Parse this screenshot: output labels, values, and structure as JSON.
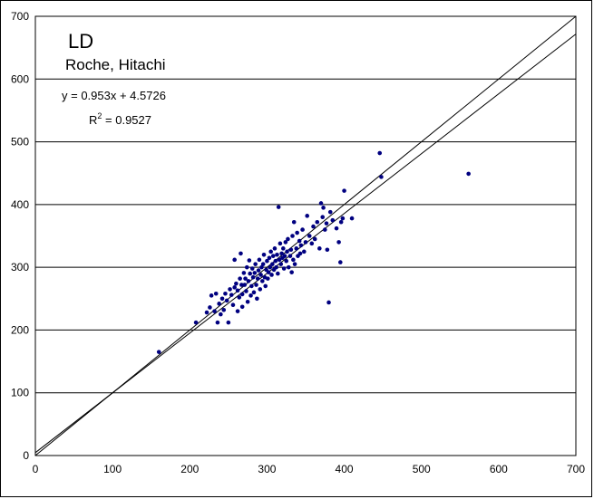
{
  "chart_data": {
    "type": "scatter",
    "title": "LD",
    "subtitle": "Roche, Hitachi",
    "equation": "y = 0.953x + 4.5726",
    "r2_prefix": "R",
    "r2_exponent": "2",
    "r2_value": " = 0.9527",
    "xlabel": "",
    "ylabel": "",
    "xlim": [
      0,
      700
    ],
    "ylim": [
      0,
      700
    ],
    "x_ticks": [
      0,
      100,
      200,
      300,
      400,
      500,
      600,
      700
    ],
    "y_ticks": [
      0,
      100,
      200,
      300,
      400,
      500,
      600,
      700
    ],
    "grid": "horizontal",
    "legend": "none",
    "point_color": "#000080",
    "line_color": "#000000",
    "lines": [
      {
        "kind": "identity",
        "slope": 1,
        "intercept": 0
      },
      {
        "kind": "regression",
        "slope": 0.953,
        "intercept": 4.5726
      }
    ],
    "points": [
      [
        160,
        165
      ],
      [
        208,
        212
      ],
      [
        222,
        228
      ],
      [
        226,
        236
      ],
      [
        228,
        255
      ],
      [
        232,
        230
      ],
      [
        234,
        258
      ],
      [
        236,
        212
      ],
      [
        238,
        242
      ],
      [
        240,
        225
      ],
      [
        242,
        250
      ],
      [
        244,
        232
      ],
      [
        246,
        258
      ],
      [
        248,
        247
      ],
      [
        250,
        212
      ],
      [
        252,
        265
      ],
      [
        254,
        256
      ],
      [
        256,
        240
      ],
      [
        258,
        268
      ],
      [
        258,
        312
      ],
      [
        260,
        274
      ],
      [
        262,
        230
      ],
      [
        262,
        263
      ],
      [
        264,
        252
      ],
      [
        265,
        282
      ],
      [
        266,
        322
      ],
      [
        267,
        272
      ],
      [
        268,
        257
      ],
      [
        268,
        237
      ],
      [
        270,
        291
      ],
      [
        271,
        272
      ],
      [
        272,
        282
      ],
      [
        273,
        262
      ],
      [
        274,
        300
      ],
      [
        275,
        245
      ],
      [
        276,
        278
      ],
      [
        277,
        311
      ],
      [
        278,
        290
      ],
      [
        279,
        255
      ],
      [
        280,
        270
      ],
      [
        281,
        298
      ],
      [
        282,
        284
      ],
      [
        283,
        260
      ],
      [
        284,
        291
      ],
      [
        285,
        305
      ],
      [
        286,
        272
      ],
      [
        287,
        250
      ],
      [
        288,
        282
      ],
      [
        289,
        295
      ],
      [
        290,
        312
      ],
      [
        291,
        265
      ],
      [
        292,
        288
      ],
      [
        293,
        300
      ],
      [
        294,
        278
      ],
      [
        295,
        305
      ],
      [
        296,
        320
      ],
      [
        297,
        284
      ],
      [
        298,
        270
      ],
      [
        299,
        296
      ],
      [
        300,
        310
      ],
      [
        301,
        282
      ],
      [
        302,
        292
      ],
      [
        303,
        315
      ],
      [
        304,
        300
      ],
      [
        305,
        325
      ],
      [
        306,
        288
      ],
      [
        307,
        305
      ],
      [
        308,
        318
      ],
      [
        309,
        296
      ],
      [
        310,
        330
      ],
      [
        311,
        310
      ],
      [
        312,
        300
      ],
      [
        313,
        320
      ],
      [
        314,
        290
      ],
      [
        315,
        396
      ],
      [
        316,
        312
      ],
      [
        317,
        338
      ],
      [
        318,
        305
      ],
      [
        319,
        322
      ],
      [
        320,
        315
      ],
      [
        321,
        330
      ],
      [
        322,
        298
      ],
      [
        323,
        318
      ],
      [
        324,
        340
      ],
      [
        325,
        310
      ],
      [
        326,
        325
      ],
      [
        327,
        345
      ],
      [
        328,
        300
      ],
      [
        330,
        318
      ],
      [
        331,
        328
      ],
      [
        332,
        292
      ],
      [
        333,
        350
      ],
      [
        334,
        312
      ],
      [
        335,
        372
      ],
      [
        336,
        305
      ],
      [
        338,
        330
      ],
      [
        339,
        355
      ],
      [
        340,
        318
      ],
      [
        342,
        342
      ],
      [
        343,
        322
      ],
      [
        344,
        335
      ],
      [
        346,
        360
      ],
      [
        348,
        325
      ],
      [
        350,
        340
      ],
      [
        352,
        382
      ],
      [
        355,
        350
      ],
      [
        358,
        338
      ],
      [
        360,
        365
      ],
      [
        362,
        345
      ],
      [
        365,
        372
      ],
      [
        368,
        330
      ],
      [
        370,
        402
      ],
      [
        372,
        380
      ],
      [
        373,
        395
      ],
      [
        375,
        360
      ],
      [
        377,
        370
      ],
      [
        378,
        328
      ],
      [
        380,
        244
      ],
      [
        382,
        388
      ],
      [
        385,
        375
      ],
      [
        390,
        362
      ],
      [
        393,
        340
      ],
      [
        395,
        308
      ],
      [
        396,
        372
      ],
      [
        398,
        378
      ],
      [
        400,
        422
      ],
      [
        410,
        378
      ],
      [
        446,
        482
      ],
      [
        448,
        444
      ],
      [
        561,
        449
      ]
    ]
  }
}
